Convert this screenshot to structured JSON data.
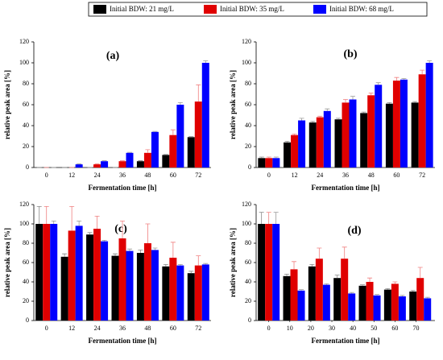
{
  "chart_data": [
    {
      "type": "bar",
      "title": "(a)",
      "xlabel": "Fermentation time [h]",
      "ylabel": "relative peak area [%]",
      "categories": [
        "0",
        "12",
        "24",
        "36",
        "48",
        "60",
        "72"
      ],
      "ylim": [
        0,
        120
      ],
      "yticks": [
        0,
        20,
        40,
        60,
        80,
        100,
        120
      ],
      "series": [
        {
          "name": "Initial BDW: 21 mg/L",
          "color": "#000000",
          "values": [
            0,
            0,
            0,
            0,
            6,
            12,
            29
          ],
          "errors": [
            0,
            0,
            0,
            0,
            0.5,
            0.5,
            0.5
          ]
        },
        {
          "name": "Initial BDW: 35 mg/L",
          "color": "#e00000",
          "values": [
            0,
            0,
            3,
            6,
            14,
            31,
            63
          ],
          "errors": [
            0,
            0,
            0.5,
            0.5,
            3,
            5,
            16
          ]
        },
        {
          "name": "Initial BDW: 68 mg/L",
          "color": "#0000ff",
          "values": [
            0,
            3,
            6,
            14,
            34,
            60,
            100
          ],
          "errors": [
            0,
            0.5,
            0.5,
            0.5,
            0.5,
            2,
            2
          ]
        }
      ]
    },
    {
      "type": "bar",
      "title": "(b)",
      "xlabel": "Fermentation time [h]",
      "ylabel": "relative peak area [%]",
      "categories": [
        "0",
        "12",
        "24",
        "36",
        "48",
        "60",
        "72"
      ],
      "ylim": [
        0,
        120
      ],
      "yticks": [
        0,
        20,
        40,
        60,
        80,
        100,
        120
      ],
      "series": [
        {
          "color": "#000000",
          "values": [
            9,
            24,
            43,
            46,
            52,
            61,
            62
          ],
          "errors": [
            1,
            1,
            1,
            1,
            1,
            1,
            1
          ]
        },
        {
          "color": "#e00000",
          "values": [
            9,
            31,
            48,
            62,
            69,
            83,
            89
          ],
          "errors": [
            1,
            1,
            1,
            3,
            2,
            3,
            4
          ]
        },
        {
          "color": "#0000ff",
          "values": [
            9,
            45,
            54,
            65,
            79,
            84,
            100
          ],
          "errors": [
            1,
            2,
            2,
            3,
            2,
            1,
            2
          ]
        }
      ]
    },
    {
      "type": "bar",
      "title": "(c)",
      "xlabel": "Fermentation time [h]",
      "ylabel": "relative peak area [%]",
      "categories": [
        "0",
        "12",
        "24",
        "36",
        "48",
        "60",
        "72"
      ],
      "ylim": [
        0,
        120
      ],
      "yticks": [
        0,
        20,
        40,
        60,
        80,
        100,
        120
      ],
      "series": [
        {
          "color": "#000000",
          "values": [
            100,
            66,
            89,
            67,
            70,
            56,
            49
          ],
          "errors": [
            18,
            3,
            2,
            2,
            3,
            2,
            2
          ]
        },
        {
          "color": "#e00000",
          "values": [
            100,
            93,
            95,
            85,
            80,
            65,
            57
          ],
          "errors": [
            18,
            25,
            13,
            18,
            20,
            16,
            10
          ]
        },
        {
          "color": "#0000ff",
          "values": [
            100,
            98,
            82,
            72,
            73,
            57,
            58
          ],
          "errors": [
            3,
            5,
            1,
            2,
            2,
            1,
            1
          ]
        }
      ]
    },
    {
      "type": "bar",
      "title": "(d)",
      "xlabel": "Fermentation time [h]",
      "ylabel": "relative peak area [%]",
      "x": [
        0,
        12,
        24,
        36,
        48,
        60,
        72
      ],
      "xlim": [
        -6,
        79
      ],
      "xticks": [
        0,
        10,
        20,
        30,
        40,
        50,
        60,
        70
      ],
      "ylim": [
        0,
        120
      ],
      "yticks": [
        0,
        20,
        40,
        60,
        80,
        100,
        120
      ],
      "series": [
        {
          "color": "#000000",
          "values": [
            100,
            46,
            56,
            44,
            36,
            32,
            30
          ],
          "errors": [
            12,
            2,
            2,
            3,
            1,
            1,
            1
          ]
        },
        {
          "color": "#e00000",
          "values": [
            100,
            53,
            64,
            64,
            40,
            38,
            44
          ],
          "errors": [
            12,
            8,
            11,
            12,
            4,
            2,
            11
          ]
        },
        {
          "color": "#0000ff",
          "values": [
            100,
            31,
            37,
            28,
            26,
            25,
            23
          ],
          "errors": [
            12,
            1,
            1,
            1,
            1,
            1,
            1
          ]
        }
      ]
    }
  ]
}
